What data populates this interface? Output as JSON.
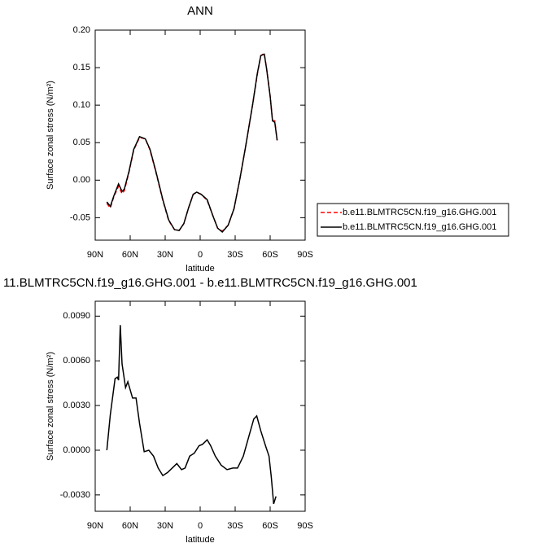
{
  "chart_data": [
    {
      "type": "line",
      "title": "ANN",
      "x_label": "latitude",
      "y_label": "Surface zonal stress (N/m²)",
      "x": [
        80,
        77,
        74,
        70,
        67,
        65,
        61,
        57,
        52,
        47,
        43,
        38,
        32,
        27,
        22,
        18,
        14,
        10,
        6,
        3,
        -1,
        -6,
        -11,
        -15,
        -19,
        -24,
        -29,
        -34,
        -39,
        -45,
        -49,
        -52,
        -55,
        -57,
        -60,
        -62,
        -64,
        -66
      ],
      "series": [
        {
          "name": "b.e11.BLMTRC5CN.f19_g16.GHG.001",
          "color": "#ff0000",
          "dash": true,
          "values": [
            -0.031,
            -0.037,
            -0.022,
            -0.008,
            -0.018,
            -0.014,
            0.011,
            0.04,
            0.057,
            0.055,
            0.04,
            0.011,
            -0.027,
            -0.054,
            -0.066,
            -0.067,
            -0.058,
            -0.037,
            -0.019,
            -0.016,
            -0.019,
            -0.027,
            -0.048,
            -0.064,
            -0.068,
            -0.06,
            -0.038,
            0.001,
            0.045,
            0.101,
            0.141,
            0.166,
            0.169,
            0.148,
            0.112,
            0.08,
            0.079,
            0.053
          ]
        },
        {
          "name": "b.e11.BLMTRC5CN.f19_g16.GHG.001",
          "color": "#000000",
          "dash": false,
          "values": [
            -0.029,
            -0.035,
            -0.021,
            -0.005,
            -0.015,
            -0.012,
            0.012,
            0.041,
            0.058,
            0.055,
            0.041,
            0.012,
            -0.026,
            -0.053,
            -0.066,
            -0.067,
            -0.058,
            -0.037,
            -0.019,
            -0.016,
            -0.019,
            -0.026,
            -0.048,
            -0.064,
            -0.069,
            -0.06,
            -0.038,
            0.001,
            0.045,
            0.101,
            0.142,
            0.166,
            0.168,
            0.148,
            0.112,
            0.079,
            0.077,
            0.053
          ]
        }
      ],
      "xlim": [
        90,
        -90
      ],
      "xticks": [
        {
          "value": 90,
          "label": "90N"
        },
        {
          "value": 60,
          "label": "60N"
        },
        {
          "value": 30,
          "label": "30N"
        },
        0,
        {
          "value": -30,
          "label": "30S"
        },
        {
          "value": -60,
          "label": "60S"
        },
        {
          "value": -90,
          "label": "90S"
        }
      ],
      "ylim": [
        -0.08,
        0.2
      ],
      "yticks": [
        {
          "value": -0.05,
          "label": "-0.05"
        },
        {
          "value": 0,
          "label": "0.00"
        },
        0.05,
        {
          "value": 0.1,
          "label": "0.10"
        },
        0.15,
        {
          "value": 0.2,
          "label": "0.20"
        }
      ],
      "legend": "right"
    },
    {
      "type": "line",
      "title": "11.BLMTRC5CN.f19_g16.GHG.001 - b.e11.BLMTRC5CN.f19_g16.GHG.001",
      "x_label": "latitude",
      "y_label": "Surface zonal stress (N/m²)",
      "x": [
        80,
        77,
        73,
        71,
        70,
        68.5,
        67,
        64,
        62,
        58,
        55,
        52,
        48,
        44,
        40,
        36,
        32,
        28,
        24,
        20,
        16,
        13,
        9,
        5,
        1,
        -2,
        -6,
        -9,
        -13,
        -18,
        -23,
        -28,
        -32,
        -37,
        -42,
        -46,
        -48.5,
        -52,
        -56,
        -59,
        -61,
        -63,
        -65
      ],
      "series": [
        {
          "color": "#000000",
          "dash": false,
          "values": [
            0,
            0.0024,
            0.0048,
            0.0049,
            0.0047,
            0.0084,
            0.0058,
            0.0042,
            0.0046,
            0.0035,
            0.0035,
            0.0018,
            -0.0001,
            0,
            -0.0004,
            -0.0012,
            -0.0017,
            -0.0015,
            -0.0012,
            -0.0009,
            -0.0013,
            -0.0012,
            -0.0004,
            -0.0002,
            0.0003,
            0.0004,
            0.0007,
            0.0003,
            -0.0004,
            -0.001,
            -0.0013,
            -0.0012,
            -0.0012,
            -0.0004,
            0.001,
            0.0021,
            0.0023,
            0.0013,
            0.0003,
            -0.0004,
            -0.0018,
            -0.0036,
            -0.0031
          ]
        }
      ],
      "xlim": [
        90,
        -90
      ],
      "xticks": [
        {
          "value": 90,
          "label": "90N"
        },
        {
          "value": 60,
          "label": "60N"
        },
        {
          "value": 30,
          "label": "30N"
        },
        0,
        {
          "value": -30,
          "label": "30S"
        },
        {
          "value": -60,
          "label": "60S"
        },
        {
          "value": -90,
          "label": "90S"
        }
      ],
      "ylim": [
        -0.0041,
        0.01
      ],
      "yticks": [
        {
          "value": -0.003,
          "label": "-0.0030"
        },
        {
          "value": 0,
          "label": "0.0000"
        },
        {
          "value": 0.003,
          "label": "0.0030"
        },
        {
          "value": 0.006,
          "label": "0.0060"
        },
        {
          "value": 0.009,
          "label": "0.0090"
        }
      ]
    }
  ]
}
